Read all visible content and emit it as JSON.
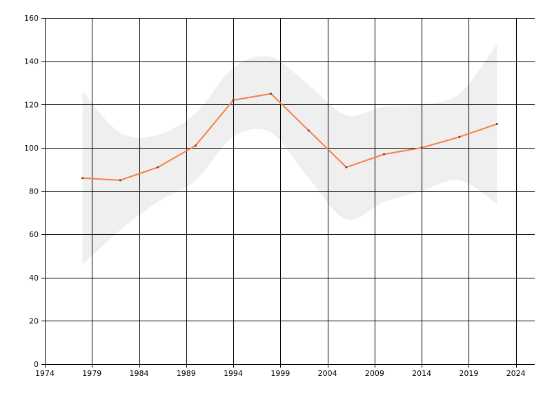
{
  "chart_data": {
    "type": "line",
    "title": "",
    "xlabel": "",
    "ylabel": "",
    "xlim": [
      1974,
      2026
    ],
    "ylim": [
      0,
      160
    ],
    "x_ticks": [
      "1974",
      "1979",
      "1984",
      "1989",
      "1994",
      "1999",
      "2004",
      "2009",
      "2014",
      "2019",
      "2024"
    ],
    "y_ticks": [
      "0",
      "20",
      "40",
      "60",
      "80",
      "100",
      "120",
      "140",
      "160"
    ],
    "grid": true,
    "legend": "none",
    "series": [
      {
        "color": "#f57f45",
        "points": [
          {
            "x": 1978,
            "y": 86
          },
          {
            "x": 1982,
            "y": 85
          },
          {
            "x": 1986,
            "y": 91
          },
          {
            "x": 1990,
            "y": 101
          },
          {
            "x": 1994,
            "y": 122
          },
          {
            "x": 1998,
            "y": 125
          },
          {
            "x": 2002,
            "y": 108
          },
          {
            "x": 2006,
            "y": 91
          },
          {
            "x": 2010,
            "y": 97
          },
          {
            "x": 2014,
            "y": 100
          },
          {
            "x": 2018,
            "y": 105
          },
          {
            "x": 2022,
            "y": 111
          }
        ]
      }
    ],
    "band": {
      "color": "#efefef",
      "upper": [
        {
          "x": 1978,
          "y": 126
        },
        {
          "x": 1982,
          "y": 107
        },
        {
          "x": 1986,
          "y": 106
        },
        {
          "x": 1990,
          "y": 116
        },
        {
          "x": 1994,
          "y": 137
        },
        {
          "x": 1998,
          "y": 142
        },
        {
          "x": 2002,
          "y": 129
        },
        {
          "x": 2006,
          "y": 115
        },
        {
          "x": 2010,
          "y": 119
        },
        {
          "x": 2014,
          "y": 120
        },
        {
          "x": 2018,
          "y": 125
        },
        {
          "x": 2022,
          "y": 148
        }
      ],
      "lower": [
        {
          "x": 1978,
          "y": 46
        },
        {
          "x": 1982,
          "y": 62
        },
        {
          "x": 1986,
          "y": 75
        },
        {
          "x": 1990,
          "y": 85
        },
        {
          "x": 1994,
          "y": 105
        },
        {
          "x": 1998,
          "y": 107
        },
        {
          "x": 2002,
          "y": 86
        },
        {
          "x": 2006,
          "y": 67
        },
        {
          "x": 2010,
          "y": 75
        },
        {
          "x": 2014,
          "y": 80
        },
        {
          "x": 2018,
          "y": 85
        },
        {
          "x": 2022,
          "y": 74
        }
      ]
    }
  }
}
